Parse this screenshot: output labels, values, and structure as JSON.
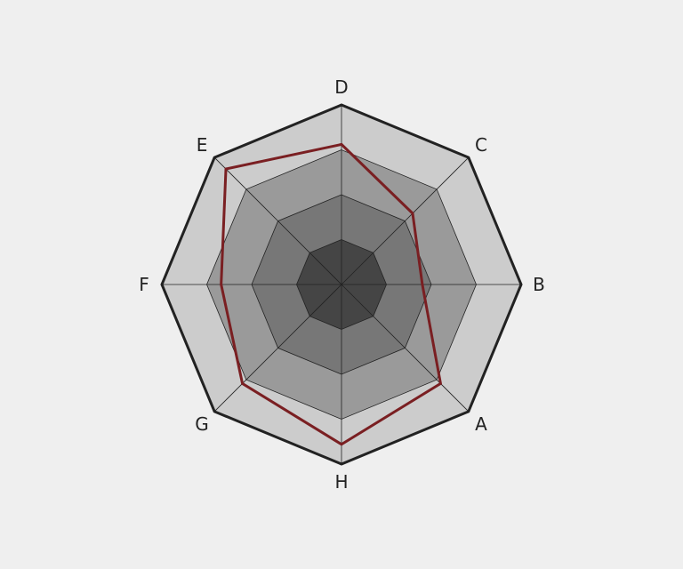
{
  "chart_data": {
    "type": "radar",
    "categories": [
      "A",
      "B",
      "C",
      "D",
      "E",
      "F",
      "G",
      "H"
    ],
    "rmax": 1.0,
    "ring_levels": [
      0.25,
      0.5,
      0.75,
      1.0
    ],
    "series": [
      {
        "values": [
          0.78,
          0.45,
          0.56,
          0.78,
          0.91,
          0.67,
          0.78,
          0.89
        ]
      }
    ],
    "grid": true,
    "legend": "none"
  },
  "colors": {
    "background": "#efefef",
    "ring_fills": [
      "#454545",
      "#777777",
      "#9a9a9a",
      "#cccccc"
    ],
    "outline": "#222222",
    "series_line": "#7a1f22",
    "grid_line": "#222222"
  }
}
